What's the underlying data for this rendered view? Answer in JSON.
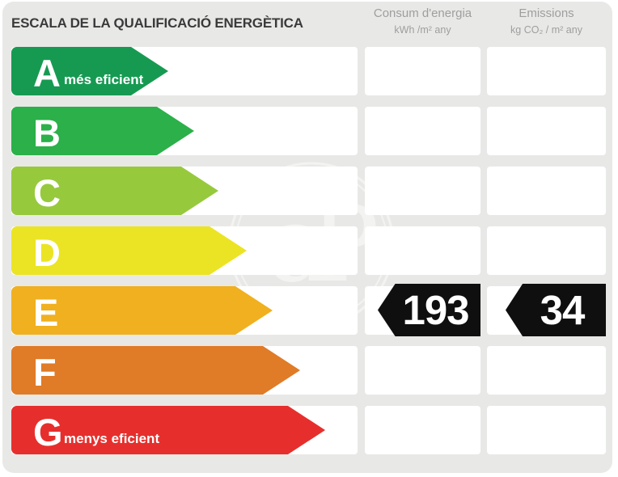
{
  "title": "ESCALA DE LA QUALIFICACIÓ ENERGÈTICA",
  "columns": [
    {
      "name": "Consum d'energia",
      "unit": "kWh /m²  any"
    },
    {
      "name": "Emissions",
      "unit": "kg CO₂ / m²  any"
    }
  ],
  "scale": {
    "grades": [
      {
        "letter": "A",
        "note": "més eficient",
        "color": "#169a52",
        "arrow_width": 194
      },
      {
        "letter": "B",
        "note": "",
        "color": "#2bb04a",
        "arrow_width": 226
      },
      {
        "letter": "C",
        "note": "",
        "color": "#97c93d",
        "arrow_width": 256
      },
      {
        "letter": "D",
        "note": "",
        "color": "#ebe424",
        "arrow_width": 291
      },
      {
        "letter": "E",
        "note": "",
        "color": "#f0b01f",
        "arrow_width": 323
      },
      {
        "letter": "F",
        "note": "",
        "color": "#e07b27",
        "arrow_width": 357
      },
      {
        "letter": "G",
        "note": "menys eficient",
        "color": "#e62f2c",
        "arrow_width": 388
      }
    ]
  },
  "ratings": {
    "grade": "E",
    "consumption_value": "193",
    "emissions_value": "34"
  },
  "watermark": {
    "text": "aP"
  },
  "colors": {
    "panel_bg": "#e8e9e7",
    "row_bg": "#ffffff",
    "value_bg": "#0f0f0f",
    "title_text": "#3a3a3a",
    "header_text": "#9e9e9e",
    "watermark": "#f3f3f1"
  },
  "chart_data": {
    "type": "bar",
    "title": "ESCALA DE LA QUALIFICACIÓ ENERGÈTICA",
    "categories": [
      "A",
      "B",
      "C",
      "D",
      "E",
      "F",
      "G"
    ],
    "series": [
      {
        "name": "Consum d'energia (kWh/m² any)",
        "values": [
          null,
          null,
          null,
          null,
          193,
          null,
          null
        ]
      },
      {
        "name": "Emissions (kg CO₂/m² any)",
        "values": [
          null,
          null,
          null,
          null,
          34,
          null,
          null
        ]
      }
    ],
    "annotations": [
      "A: més eficient",
      "G: menys eficient"
    ],
    "rating": "E",
    "legend_position": "top",
    "grid": false
  }
}
